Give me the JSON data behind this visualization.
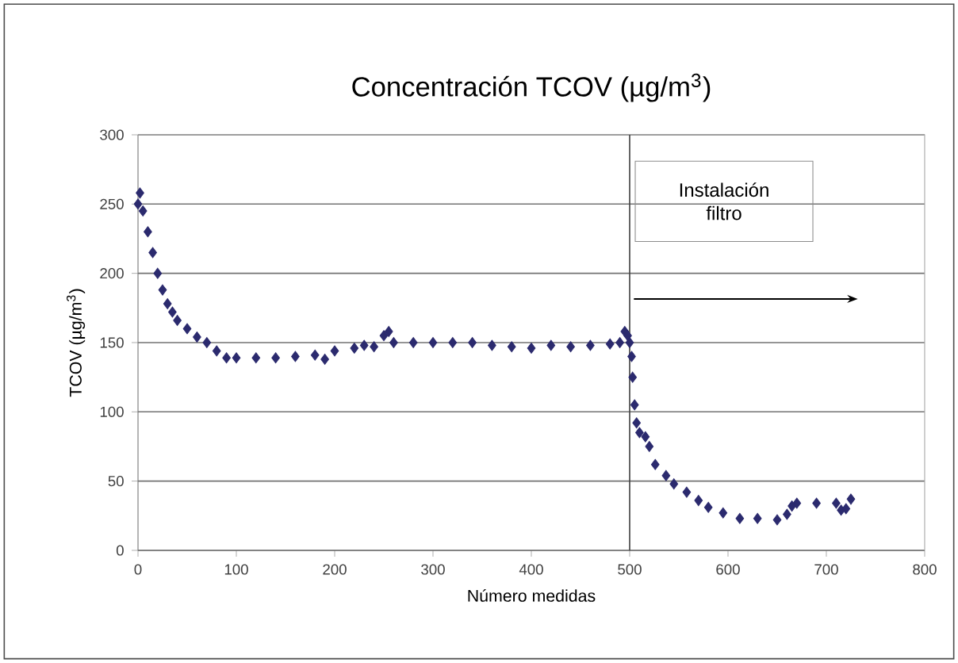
{
  "chart_data": {
    "type": "scatter",
    "title": "Concentración TCOV (µg/m$^{3}$)",
    "xlabel": "Número medidas",
    "ylabel": "TCOV (µg/m$^{3}$)",
    "xlim": [
      0,
      800
    ],
    "xticks": [
      0,
      100,
      200,
      300,
      400,
      500,
      600,
      700,
      800
    ],
    "ylim": [
      0,
      300
    ],
    "yticks": [
      0,
      50,
      100,
      150,
      200,
      250,
      300
    ],
    "grid": "y",
    "marker": "diamond",
    "ref_lines": [
      {
        "axis": "x",
        "value": 500,
        "color": "#404040"
      }
    ],
    "annotations": [
      "Instalación filtro"
    ],
    "series": [
      {
        "color": "#2b2a6e",
        "x": [
          0,
          2,
          5,
          10,
          15,
          20,
          25,
          30,
          35,
          40,
          50,
          60,
          70,
          80,
          90,
          100,
          120,
          140,
          160,
          180,
          190,
          200,
          220,
          230,
          240,
          250,
          255,
          260,
          280,
          300,
          320,
          340,
          360,
          380,
          400,
          420,
          440,
          460,
          480,
          490,
          495,
          498,
          500,
          502,
          503,
          505,
          507,
          510,
          516,
          520,
          526,
          537,
          545,
          558,
          570,
          580,
          595,
          612,
          630,
          650,
          660,
          665,
          670,
          690,
          710,
          715,
          720,
          725
        ],
        "values": [
          250,
          258,
          245,
          230,
          215,
          200,
          188,
          178,
          172,
          166,
          160,
          154,
          150,
          144,
          139,
          139,
          139,
          139,
          140,
          141,
          138,
          144,
          146,
          148,
          147,
          155,
          158,
          150,
          150,
          150,
          150,
          150,
          148,
          147,
          146,
          148,
          147,
          148,
          149,
          150,
          158,
          155,
          150,
          140,
          125,
          105,
          92,
          85,
          82,
          75,
          62,
          54,
          48,
          42,
          36,
          31,
          27,
          23,
          23,
          22,
          26,
          32,
          34,
          34,
          34,
          29,
          30,
          37
        ]
      }
    ]
  }
}
